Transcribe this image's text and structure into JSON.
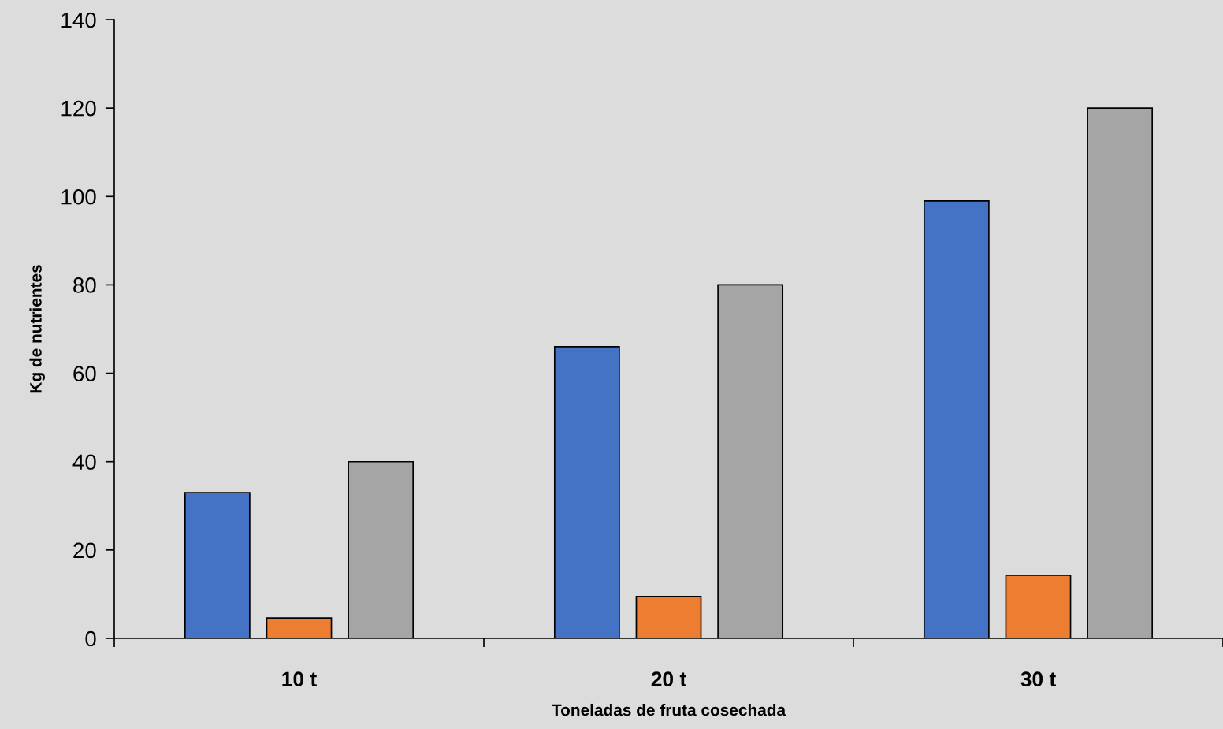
{
  "chart_data": {
    "type": "bar",
    "xlabel": "Toneladas de fruta cosechada",
    "ylabel": "Kg de nutrientes",
    "categories": [
      "10 t",
      "20 t",
      "30 t"
    ],
    "series": [
      {
        "color": "#4472c4",
        "values": [
          33,
          66,
          99
        ]
      },
      {
        "color": "#ed7d31",
        "values": [
          4.6,
          9.5,
          14.3
        ]
      },
      {
        "color": "#a5a5a5",
        "values": [
          40,
          80,
          120
        ]
      }
    ],
    "ylim": [
      0,
      140
    ],
    "yticks": [
      0,
      20,
      40,
      60,
      80,
      100,
      120,
      140
    ],
    "grid": false
  }
}
